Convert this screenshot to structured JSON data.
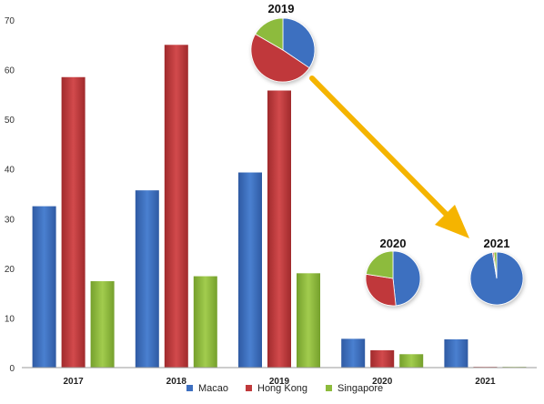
{
  "chart_data": [
    {
      "type": "bar",
      "categories": [
        "2017",
        "2018",
        "2019",
        "2020",
        "2021"
      ],
      "series": [
        {
          "name": "Macao",
          "values": [
            32.5,
            35.7,
            39.3,
            5.8,
            5.7
          ],
          "color": "#3D6FC0"
        },
        {
          "name": "Hong Kong",
          "values": [
            58.5,
            65.0,
            55.8,
            3.5,
            0.05
          ],
          "color": "#C0393B"
        },
        {
          "name": "Singapore",
          "values": [
            17.4,
            18.4,
            19.0,
            2.7,
            0.1
          ],
          "color": "#8DBB3C"
        }
      ],
      "title": "",
      "xlabel": "",
      "ylabel": "",
      "ylim": [
        0,
        70
      ],
      "yticks": [
        "0",
        "10",
        "20",
        "30",
        "40",
        "50",
        "60",
        "70"
      ],
      "grid": false,
      "legend": "bottom-center"
    },
    {
      "type": "pie",
      "title": "2019",
      "labels": [
        "Macao",
        "Hong Kong",
        "Singapore"
      ],
      "values": [
        39.3,
        55.8,
        19.0
      ]
    },
    {
      "type": "pie",
      "title": "2020",
      "labels": [
        "Macao",
        "Hong Kong",
        "Singapore"
      ],
      "values": [
        5.8,
        3.5,
        2.7
      ]
    },
    {
      "type": "pie",
      "title": "2021",
      "labels": [
        "Macao",
        "Hong Kong",
        "Singapore"
      ],
      "values": [
        5.7,
        0.05,
        0.1
      ]
    }
  ],
  "colors": {
    "macao": "#3D6FC0",
    "hong_kong": "#C0393B",
    "singapore": "#8DBB3C",
    "arrow": "#F5B400",
    "axis": "#999999"
  }
}
